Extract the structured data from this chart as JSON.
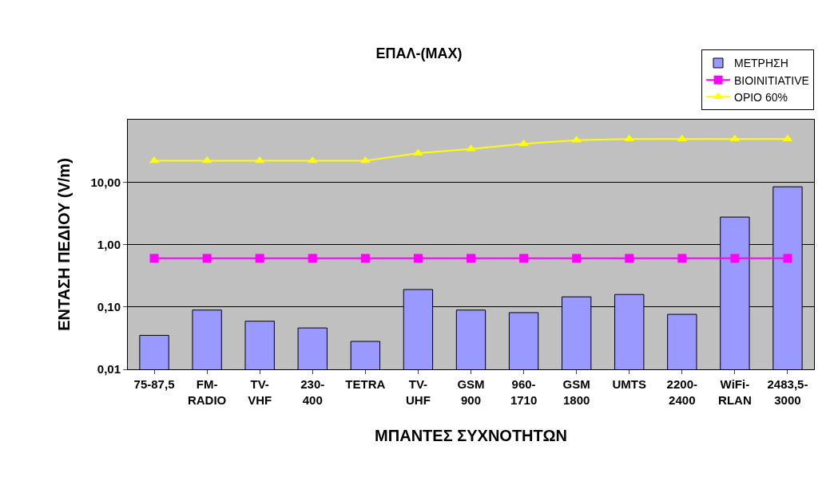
{
  "chart_data": {
    "type": "bar",
    "title": "ΕΠΑΛ-(ΜΑΧ)",
    "xlabel": "ΜΠΑΝΤΕΣ ΣΥΧΝΟΤΗΤΩΝ",
    "ylabel": "ΕΝΤΑΣΗ ΠΕΔΙΟΥ (V/m)",
    "categories": [
      "75-87,5",
      "FM-\nRADIO",
      "TV-\nVHF",
      "230-\n400",
      "TETRA",
      "TV-\nUHF",
      "GSM\n900",
      "960-\n1710",
      "GSM\n1800",
      "UMTS",
      "2200-\n2400",
      "WiFi-\nRLAN",
      "2483,5-\n3000"
    ],
    "series": [
      {
        "name": "ΜΕΤΡΗΣΗ",
        "color": "#9999ff",
        "values": [
          0.035,
          0.089,
          0.059,
          0.046,
          0.028,
          0.19,
          0.089,
          0.081,
          0.145,
          0.158,
          0.076,
          2.75,
          8.4
        ]
      },
      {
        "name": "BIOINITIATIVE",
        "type": "line",
        "color": "#ff00ff",
        "marker": "square",
        "values": [
          0.6,
          0.6,
          0.6,
          0.6,
          0.6,
          0.6,
          0.6,
          0.6,
          0.6,
          0.6,
          0.6,
          0.6,
          0.6
        ]
      },
      {
        "name": "ΟΡΙΟ 60%",
        "type": "line",
        "color": "#ffff00",
        "marker": "triangle",
        "values": [
          22,
          22,
          22,
          22,
          22,
          29,
          34,
          41,
          47,
          49,
          49,
          49,
          49
        ]
      }
    ],
    "log": "y",
    "ylim": [
      0.01,
      100
    ],
    "yticks": [
      {
        "value": 0.01,
        "label": "0,01"
      },
      {
        "value": 0.1,
        "label": "0,10"
      },
      {
        "value": 1,
        "label": "1,00"
      },
      {
        "value": 10,
        "label": "10,00"
      }
    ],
    "grid": "y",
    "legend": "top right"
  }
}
